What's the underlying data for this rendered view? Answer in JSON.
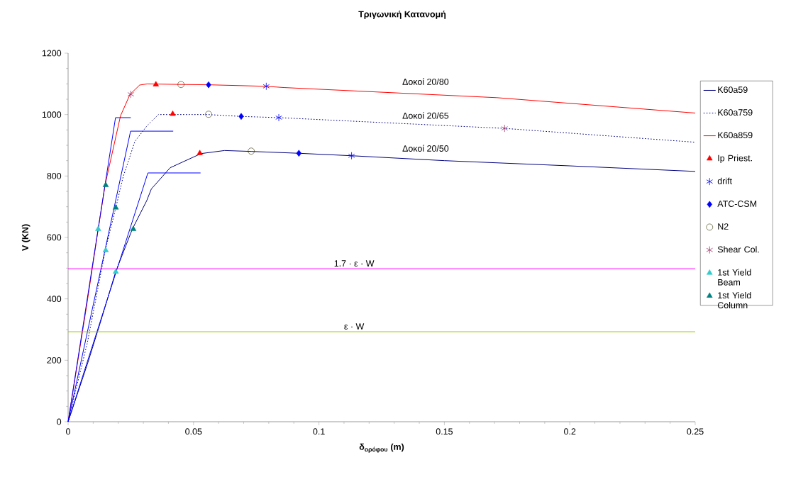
{
  "chart_data": {
    "type": "line",
    "title": "Τριγωνική Κατανομή",
    "xlabel": "δ$_{ορόφου}$ (m)",
    "ylabel": "V (KN)",
    "xlim": [
      0,
      0.25
    ],
    "ylim": [
      0,
      1200
    ],
    "xticks": [
      0,
      0.05,
      0.1,
      0.15,
      0.2,
      0.25
    ],
    "yticks": [
      0,
      200,
      400,
      600,
      800,
      1000,
      1200
    ],
    "legend": "right",
    "grid": false,
    "series": [
      {
        "name": "K60a59",
        "color": "#000080",
        "line_style": "solid",
        "x": [
          0,
          0.0077,
          0.0124,
          0.019,
          0.0256,
          0.0313,
          0.0332,
          0.0407,
          0.053,
          0.0624,
          0.073,
          0.092,
          0.113,
          0.15,
          0.2,
          0.25
        ],
        "values": [
          0,
          188,
          311,
          489,
          627,
          719,
          758,
          827,
          873,
          883,
          880,
          874,
          866,
          850,
          833,
          815
        ]
      },
      {
        "name": "K60a759",
        "color": "#000080",
        "line_style": "dotted",
        "x": [
          0,
          0.0077,
          0.0148,
          0.019,
          0.0219,
          0.0266,
          0.0313,
          0.036,
          0.056,
          0.069,
          0.084,
          0.174,
          0.25
        ],
        "values": [
          0,
          258,
          558,
          696,
          796,
          912,
          962,
          1000,
          1000,
          994,
          990,
          955,
          910
        ]
      },
      {
        "name": "K60a859",
        "color": "#ff0000",
        "line_style": "solid",
        "x": [
          0,
          0.0073,
          0.012,
          0.0148,
          0.0209,
          0.0247,
          0.0285,
          0.0316,
          0.045,
          0.056,
          0.079,
          0.086,
          0.171,
          0.25
        ],
        "values": [
          0,
          373,
          627,
          773,
          996,
          1066,
          1096,
          1100,
          1098,
          1097,
          1092,
          1088,
          1055,
          1005
        ]
      },
      {
        "color": "#0000ff",
        "line_style": "solid",
        "x": [
          0,
          0.0189,
          0.025
        ],
        "values": [
          0,
          990,
          990
        ]
      },
      {
        "color": "#0000ff",
        "line_style": "solid",
        "x": [
          0,
          0.0249,
          0.0419
        ],
        "values": [
          0,
          946,
          946
        ]
      },
      {
        "color": "#0000ff",
        "line_style": "solid",
        "x": [
          0,
          0.0318,
          0.0528
        ],
        "values": [
          0,
          810,
          810
        ]
      },
      {
        "name": "Ip Priest.",
        "type": "scatter",
        "marker": "triangle",
        "color": "#ff0000",
        "x": [
          0.035,
          0.0417,
          0.0525
        ],
        "values": [
          1098,
          1002,
          874
        ]
      },
      {
        "name": "drift",
        "type": "scatter",
        "marker": "cross",
        "color": "#0000ff",
        "x": [
          0.079,
          0.084,
          0.113
        ],
        "values": [
          1092,
          990,
          866
        ]
      },
      {
        "name": "ATC-CSM",
        "type": "scatter",
        "marker": "diamond",
        "color": "#0000ff",
        "x": [
          0.056,
          0.069,
          0.092
        ],
        "values": [
          1097,
          994,
          874
        ]
      },
      {
        "name": "N2",
        "type": "scatter",
        "marker": "circle",
        "color": "#333300",
        "x": [
          0.045,
          0.056,
          0.073
        ],
        "values": [
          1098,
          1001,
          881
        ]
      },
      {
        "name": "Shear Col.",
        "type": "scatter",
        "marker": "cross",
        "color": "#993366",
        "x": [
          0.025,
          0.174
        ],
        "values": [
          1066,
          955
        ]
      },
      {
        "name": "1st Yield Beam",
        "type": "scatter",
        "marker": "triangle",
        "color": "#33cccc",
        "x": [
          0.012,
          0.015,
          0.019
        ],
        "values": [
          627,
          558,
          488
        ]
      },
      {
        "name": "1st Yield Column",
        "type": "scatter",
        "marker": "triangle",
        "color": "#008080",
        "x": [
          0.015,
          0.019,
          0.026
        ],
        "values": [
          770,
          697,
          627
        ]
      }
    ],
    "ref_lines": [
      {
        "axis": "y",
        "value": 498,
        "label": "1.7 · ε · W",
        "color": "#ff00ff"
      },
      {
        "axis": "y",
        "value": 293,
        "label": "ε · W",
        "color": "#99cc00"
      }
    ],
    "annotations": [
      "Δοκοί 20/80",
      "Δοκοί 20/65",
      "Δοκοί 20/50"
    ]
  }
}
